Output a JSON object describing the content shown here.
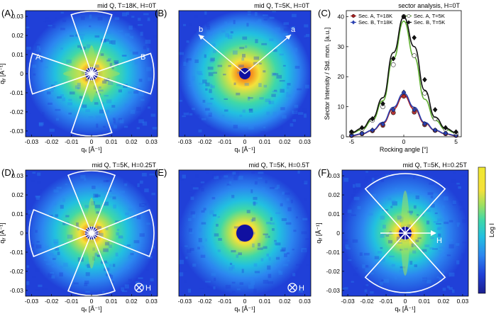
{
  "colormap": [
    "#1b1f8e",
    "#2040d8",
    "#2c86f0",
    "#22c0e0",
    "#3fd8a8",
    "#9fe060",
    "#f5e13a",
    "#f59a22",
    "#e8421a"
  ],
  "maps": [
    {
      "id": "A",
      "label": "(A)",
      "title": "mid Q, T=18K, H=0T",
      "ylabel": "qᵧ [Å⁻¹]",
      "xlabel": "qₓ [Å⁻¹]",
      "ticks": [
        "-0.03",
        "-0.02",
        "-0.01",
        "0",
        "0.01",
        "0.02",
        "0.03"
      ],
      "annot": [
        "A",
        "B"
      ],
      "symbol": ""
    },
    {
      "id": "B",
      "label": "(B)",
      "title": "mid Q, T=5K, H=0T",
      "ylabel": "",
      "xlabel": "qₓ [Å⁻¹]",
      "ticks": [
        "-0.03",
        "-0.02",
        "-0.01",
        "0",
        "0.01",
        "0.02",
        "0.03"
      ],
      "annot": [
        "b",
        "a"
      ],
      "symbol": ""
    },
    {
      "id": "D",
      "label": "(D)",
      "title": "mid Q, T=5K, H=0.25T",
      "ylabel": "qᵧ [Å⁻¹]",
      "xlabel": "qₓ [Å⁻¹]",
      "ticks": [
        "-0.03",
        "-0.02",
        "-0.01",
        "0",
        "0.01",
        "0.02",
        "0.03"
      ],
      "annot": [],
      "symbol": "H"
    },
    {
      "id": "E",
      "label": "(E)",
      "title": "mid Q, T=5K, H=0.5T",
      "ylabel": "",
      "xlabel": "qₓ [Å⁻¹]",
      "ticks": [
        "-0.03",
        "-0.02",
        "-0.01",
        "0",
        "0.01",
        "0.02",
        "0.03"
      ],
      "annot": [],
      "symbol": "H"
    },
    {
      "id": "F",
      "label": "(F)",
      "title": "mid Q, T=5K, H=0.25T",
      "ylabel": "qᵧ [Å⁻¹]",
      "xlabel": "qₓ [Å⁻¹]",
      "ticks": [
        "-0.03",
        "-0.02",
        "-0.01",
        "0",
        "0.01",
        "0.02",
        "0.03"
      ],
      "annot": [
        "H"
      ],
      "symbol": ""
    }
  ],
  "colorbar": {
    "label": "Log I"
  },
  "chart_data": [
    {
      "type": "heatmap",
      "panel": "(A)",
      "title": "mid Q, T=18K, H=0T",
      "xlabel": "qₓ [Å⁻¹]",
      "ylabel": "qᵧ [Å⁻¹]",
      "xlim": [
        -0.033,
        0.033
      ],
      "ylim": [
        -0.033,
        0.033
      ],
      "description_of_pattern": "isotropic-ish scattering with fourfold sectors",
      "sectors": [
        "A",
        "B"
      ]
    },
    {
      "type": "line",
      "panel": "(C)",
      "title": "sector analysis, H=0T",
      "xlabel": "Rocking angle [°]",
      "ylabel": "Sector Intensity / Std. mon. [a.u.]",
      "xlim": [
        -5.5,
        5.5
      ],
      "ylim": [
        0,
        42
      ],
      "xticks": [
        -5,
        0,
        5
      ],
      "yticks": [
        0,
        10,
        20,
        30,
        40
      ],
      "legend_position": "top",
      "series": [
        {
          "name": "Sec. A, T=18K",
          "color": "#b02020",
          "marker": "circle",
          "x": [
            -5,
            -4,
            -3,
            -2,
            -1,
            0,
            1,
            2,
            3,
            4,
            5
          ],
          "y": [
            0.4,
            1.0,
            2.0,
            3.8,
            8.0,
            13.5,
            8.2,
            4.0,
            2.1,
            1.0,
            0.4
          ],
          "fit": [
            0.3,
            0.9,
            2.1,
            4.5,
            9.2,
            13.8,
            9.2,
            4.5,
            2.1,
            0.9,
            0.3
          ]
        },
        {
          "name": "Sec. B, T=18K",
          "color": "#2a40b0",
          "marker": "diamond",
          "x": [
            -5,
            -4,
            -3,
            -2,
            -1,
            0,
            1,
            2,
            3,
            4,
            5
          ],
          "y": [
            0.5,
            1.1,
            2.2,
            4.2,
            9.0,
            14.8,
            9.0,
            4.3,
            2.2,
            1.2,
            0.5
          ],
          "fit": [
            0.4,
            1.0,
            2.2,
            4.8,
            9.8,
            14.5,
            9.8,
            4.8,
            2.2,
            1.0,
            0.4
          ]
        },
        {
          "name": "Sec. A, T=5K",
          "color": "#60b030",
          "marker": "circle",
          "x": [
            -5,
            -4,
            -3,
            -2,
            -1,
            0,
            1,
            2,
            3,
            4,
            5
          ],
          "y": [
            1.5,
            2.5,
            5.5,
            10.0,
            24.0,
            40.0,
            27.0,
            14.5,
            6.0,
            2.5,
            1.2
          ],
          "fit": [
            1.2,
            2.4,
            5.5,
            12.0,
            26.0,
            38.5,
            26.5,
            12.5,
            5.5,
            2.4,
            1.2
          ]
        },
        {
          "name": "Sec. B, T=5K",
          "color": "#111111",
          "marker": "diamond",
          "x": [
            -5,
            -4,
            -3,
            -2,
            -1,
            0,
            1,
            2,
            3,
            4,
            5
          ],
          "y": [
            1.6,
            3.0,
            6.0,
            11.0,
            26.0,
            40.0,
            33.0,
            19.0,
            9.0,
            3.0,
            1.6
          ],
          "fit": [
            1.4,
            2.8,
            6.2,
            13.0,
            28.0,
            39.8,
            30.0,
            15.5,
            6.5,
            2.8,
            1.4
          ]
        }
      ]
    }
  ]
}
